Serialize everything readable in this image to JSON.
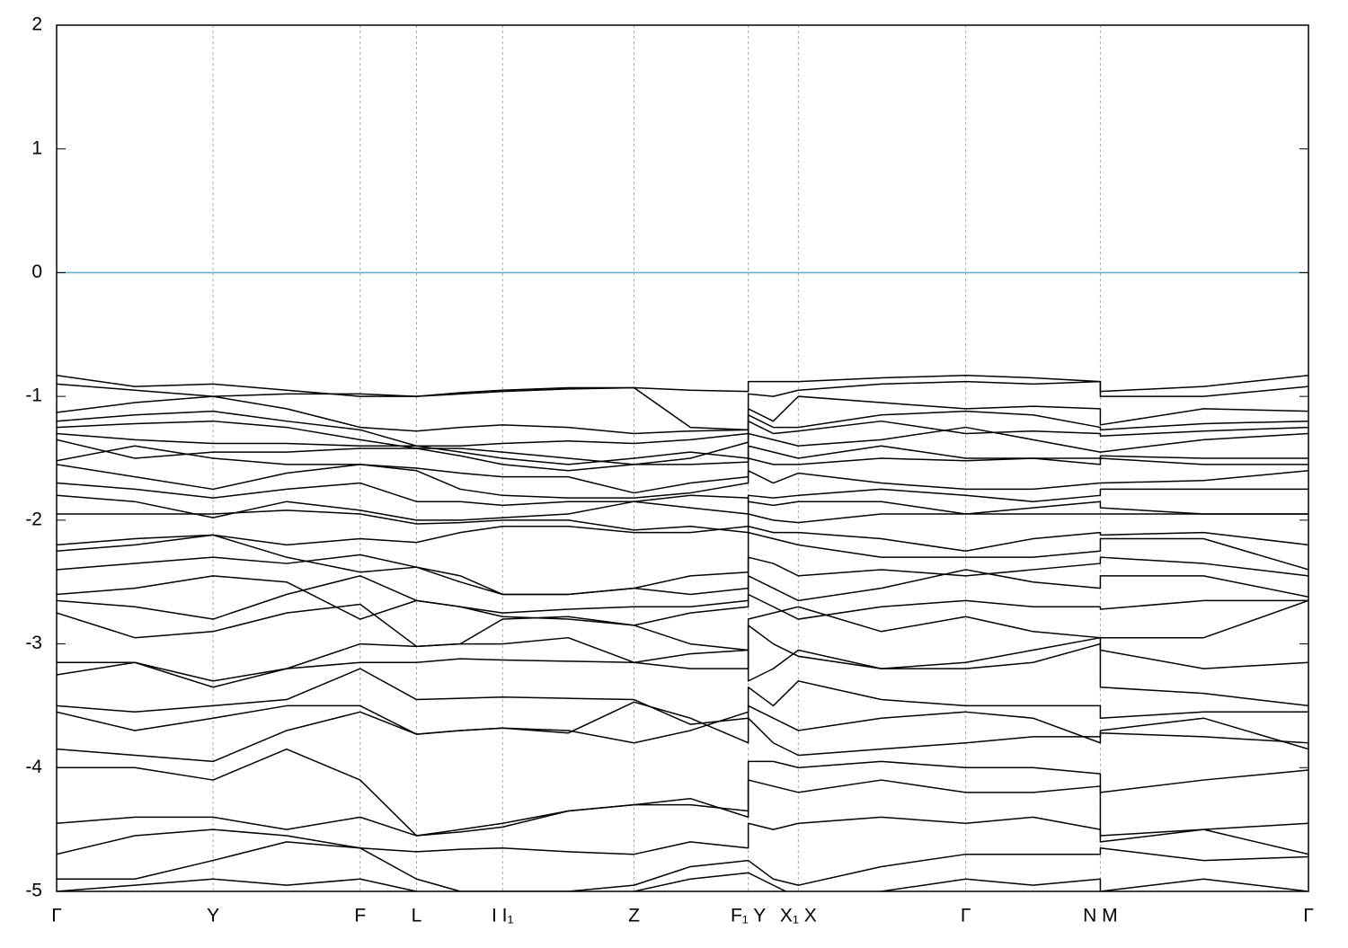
{
  "chart_data": {
    "type": "line",
    "color": "#000000",
    "xlim": [
      0,
      8.0
    ],
    "ylim": [
      -5,
      2
    ],
    "yticks": [
      -5,
      -4,
      -3,
      -2,
      -1,
      0,
      1,
      2
    ],
    "xticks": [
      {
        "value": 0,
        "label": "Γ"
      },
      {
        "value": 1.0,
        "label": "Y"
      },
      {
        "value": 1.94,
        "label": "F"
      },
      {
        "value": 2.3,
        "label": "L"
      },
      {
        "value": 2.85,
        "label": "I I₁"
      },
      {
        "value": 3.69,
        "label": "Z"
      },
      {
        "value": 4.42,
        "label": "F₁ Y"
      },
      {
        "value": 4.74,
        "label": "X₁ X"
      },
      {
        "value": 5.81,
        "label": "Γ"
      },
      {
        "value": 6.67,
        "label": "N M"
      },
      {
        "value": 8.0,
        "label": "Γ"
      }
    ],
    "xgrid": true,
    "reference_line": {
      "value": 0,
      "color": "#5fb3c8"
    },
    "x": [
      0,
      0.5,
      1.0,
      1.47,
      1.94,
      2.3,
      2.58,
      2.85,
      3.27,
      3.69,
      4.05,
      4.42,
      4.42,
      4.58,
      4.74,
      5.27,
      5.81,
      6.24,
      6.67,
      6.67,
      7.33,
      8.0
    ],
    "series": [
      {
        "values": [
          -0.83,
          -0.92,
          -0.9,
          -0.95,
          -1.0,
          -1.0,
          -0.97,
          -0.95,
          -0.93,
          -0.93,
          -0.95,
          -0.96,
          -0.88,
          -0.88,
          -0.88,
          -0.85,
          -0.83,
          -0.85,
          -0.88,
          -0.96,
          -0.92,
          -0.83
        ]
      },
      {
        "values": [
          -0.9,
          -0.95,
          -1.0,
          -0.98,
          -0.98,
          -1.0,
          -0.98,
          -0.96,
          -0.94,
          -0.93,
          -1.25,
          -1.27,
          -0.98,
          -1.0,
          -0.95,
          -0.9,
          -0.88,
          -0.9,
          -0.88,
          -1.0,
          -1.0,
          -0.92
        ]
      },
      {
        "values": [
          -1.13,
          -1.05,
          -1.0,
          -1.1,
          -1.25,
          -1.28,
          -1.25,
          -1.23,
          -1.25,
          -1.3,
          -1.28,
          -1.27,
          -1.1,
          -1.2,
          -1.0,
          -1.05,
          -1.1,
          -1.08,
          -1.1,
          -1.23,
          -1.1,
          -1.12
        ]
      },
      {
        "values": [
          -1.2,
          -1.15,
          -1.12,
          -1.2,
          -1.27,
          -1.4,
          -1.4,
          -1.38,
          -1.36,
          -1.38,
          -1.35,
          -1.3,
          -1.15,
          -1.25,
          -1.25,
          -1.15,
          -1.12,
          -1.15,
          -1.25,
          -1.27,
          -1.22,
          -1.2
        ]
      },
      {
        "values": [
          -1.25,
          -1.22,
          -1.2,
          -1.25,
          -1.35,
          -1.42,
          -1.42,
          -1.45,
          -1.5,
          -1.55,
          -1.5,
          -1.37,
          -1.2,
          -1.3,
          -1.28,
          -1.2,
          -1.3,
          -1.28,
          -1.3,
          -1.32,
          -1.28,
          -1.25
        ]
      },
      {
        "values": [
          -1.3,
          -1.35,
          -1.38,
          -1.38,
          -1.4,
          -1.4,
          -1.45,
          -1.5,
          -1.55,
          -1.5,
          -1.45,
          -1.5,
          -1.3,
          -1.35,
          -1.4,
          -1.35,
          -1.25,
          -1.35,
          -1.45,
          -1.45,
          -1.35,
          -1.3
        ]
      },
      {
        "values": [
          -1.35,
          -1.5,
          -1.45,
          -1.45,
          -1.42,
          -1.42,
          -1.48,
          -1.55,
          -1.6,
          -1.55,
          -1.55,
          -1.53,
          -1.4,
          -1.45,
          -1.5,
          -1.4,
          -1.5,
          -1.5,
          -1.5,
          -1.48,
          -1.5,
          -1.5
        ]
      },
      {
        "values": [
          -1.52,
          -1.4,
          -1.5,
          -1.55,
          -1.55,
          -1.58,
          -1.62,
          -1.65,
          -1.65,
          -1.78,
          -1.7,
          -1.65,
          -1.5,
          -1.55,
          -1.55,
          -1.5,
          -1.52,
          -1.5,
          -1.55,
          -1.5,
          -1.55,
          -1.55
        ]
      },
      {
        "values": [
          -1.55,
          -1.65,
          -1.75,
          -1.62,
          -1.55,
          -1.6,
          -1.75,
          -1.8,
          -1.82,
          -1.82,
          -1.78,
          -1.7,
          -1.6,
          -1.7,
          -1.62,
          -1.7,
          -1.75,
          -1.75,
          -1.7,
          -1.7,
          -1.68,
          -1.6
        ]
      },
      {
        "values": [
          -1.7,
          -1.75,
          -1.82,
          -1.75,
          -1.7,
          -1.85,
          -1.85,
          -1.88,
          -1.85,
          -1.85,
          -1.9,
          -1.95,
          -1.8,
          -1.82,
          -1.8,
          -1.75,
          -1.8,
          -1.85,
          -1.8,
          -1.75,
          -1.75,
          -1.75
        ]
      },
      {
        "values": [
          -1.8,
          -1.85,
          -1.98,
          -1.85,
          -1.92,
          -2.0,
          -2.0,
          -1.98,
          -1.95,
          -1.85,
          -1.8,
          -1.82,
          -1.85,
          -1.88,
          -1.85,
          -1.85,
          -1.95,
          -1.9,
          -1.85,
          -1.9,
          -1.95,
          -1.95
        ]
      },
      {
        "values": [
          -1.95,
          -1.95,
          -1.95,
          -1.92,
          -1.95,
          -2.03,
          -2.02,
          -2.0,
          -2.0,
          -2.08,
          -2.05,
          -2.1,
          -1.95,
          -2.0,
          -2.02,
          -1.95,
          -1.95,
          -1.95,
          -1.95,
          -1.95,
          -1.95,
          -1.95
        ]
      },
      {
        "values": [
          -2.2,
          -2.15,
          -2.12,
          -2.2,
          -2.15,
          -2.18,
          -2.1,
          -2.05,
          -2.05,
          -2.1,
          -2.1,
          -2.05,
          -2.05,
          -2.1,
          -2.1,
          -2.15,
          -2.25,
          -2.15,
          -2.1,
          -2.12,
          -2.1,
          -2.2
        ]
      },
      {
        "values": [
          -2.25,
          -2.2,
          -2.12,
          -2.3,
          -2.42,
          -2.38,
          -2.45,
          -2.6,
          -2.6,
          -2.55,
          -2.45,
          -2.42,
          -2.1,
          -2.15,
          -2.2,
          -2.3,
          -2.3,
          -2.3,
          -2.25,
          -2.15,
          -2.15,
          -2.4
        ]
      },
      {
        "values": [
          -2.4,
          -2.35,
          -2.3,
          -2.35,
          -2.28,
          -2.38,
          -2.5,
          -2.6,
          -2.6,
          -2.55,
          -2.6,
          -2.55,
          -2.3,
          -2.35,
          -2.45,
          -2.4,
          -2.45,
          -2.4,
          -2.35,
          -2.3,
          -2.35,
          -2.45
        ]
      },
      {
        "values": [
          -2.6,
          -2.55,
          -2.45,
          -2.5,
          -2.8,
          -2.65,
          -2.7,
          -2.75,
          -2.72,
          -2.7,
          -2.7,
          -2.65,
          -2.45,
          -2.55,
          -2.65,
          -2.55,
          -2.4,
          -2.5,
          -2.55,
          -2.45,
          -2.45,
          -2.62
        ]
      },
      {
        "values": [
          -2.65,
          -2.7,
          -2.8,
          -2.6,
          -2.45,
          -2.65,
          -2.7,
          -2.78,
          -2.8,
          -2.85,
          -2.75,
          -2.7,
          -2.6,
          -2.7,
          -2.8,
          -2.7,
          -2.65,
          -2.7,
          -2.7,
          -2.72,
          -2.65,
          -2.65
        ]
      },
      {
        "values": [
          -2.75,
          -2.95,
          -2.9,
          -2.75,
          -2.68,
          -3.02,
          -3.0,
          -2.8,
          -2.78,
          -2.85,
          -3.0,
          -3.05,
          -2.8,
          -2.75,
          -2.7,
          -2.9,
          -2.78,
          -2.9,
          -2.95,
          -2.95,
          -2.95,
          -2.65
        ]
      },
      {
        "values": [
          -3.15,
          -3.15,
          -3.3,
          -3.2,
          -3.15,
          -3.15,
          -3.12,
          -3.13,
          -3.14,
          -3.15,
          -3.2,
          -3.2,
          -2.85,
          -3.0,
          -3.1,
          -3.2,
          -3.15,
          -3.05,
          -2.95,
          -3.05,
          -3.2,
          -3.15
        ]
      },
      {
        "values": [
          -3.25,
          -3.15,
          -3.35,
          -3.2,
          -3.0,
          -3.02,
          -3.0,
          -3.0,
          -2.95,
          -3.15,
          -3.08,
          -3.05,
          -3.3,
          -3.2,
          -3.05,
          -3.2,
          -3.2,
          -3.15,
          -3.0,
          -3.35,
          -3.4,
          -3.5
        ]
      },
      {
        "values": [
          -3.5,
          -3.55,
          -3.5,
          -3.45,
          -3.2,
          -3.45,
          -3.44,
          -3.43,
          -3.44,
          -3.45,
          -3.65,
          -3.6,
          -3.35,
          -3.5,
          -3.3,
          -3.45,
          -3.5,
          -3.5,
          -3.5,
          -3.6,
          -3.55,
          -3.55
        ]
      },
      {
        "values": [
          -3.55,
          -3.7,
          -3.6,
          -3.5,
          -3.5,
          -3.73,
          -3.7,
          -3.68,
          -3.7,
          -3.8,
          -3.7,
          -3.55,
          -3.5,
          -3.6,
          -3.7,
          -3.6,
          -3.55,
          -3.6,
          -3.8,
          -3.7,
          -3.6,
          -3.85
        ]
      },
      {
        "values": [
          -3.85,
          -3.9,
          -3.95,
          -3.7,
          -3.55,
          -3.73,
          -3.7,
          -3.68,
          -3.72,
          -3.47,
          -3.6,
          -3.8,
          -3.6,
          -3.8,
          -3.9,
          -3.85,
          -3.8,
          -3.75,
          -3.75,
          -3.72,
          -3.75,
          -3.8
        ]
      },
      {
        "values": [
          -4.0,
          -4.0,
          -4.1,
          -3.85,
          -4.1,
          -4.55,
          -4.5,
          -4.45,
          -4.35,
          -4.3,
          -4.3,
          -4.35,
          -3.95,
          -3.95,
          -4.0,
          -3.95,
          -4.0,
          -4.0,
          -4.05,
          -4.2,
          -4.1,
          -4.02
        ]
      },
      {
        "values": [
          -4.45,
          -4.4,
          -4.4,
          -4.5,
          -4.4,
          -4.55,
          -4.52,
          -4.48,
          -4.35,
          -4.3,
          -4.25,
          -4.4,
          -4.1,
          -4.15,
          -4.2,
          -4.1,
          -4.2,
          -4.2,
          -4.15,
          -4.55,
          -4.5,
          -4.45
        ]
      },
      {
        "values": [
          -4.7,
          -4.55,
          -4.5,
          -4.55,
          -4.65,
          -4.68,
          -4.66,
          -4.65,
          -4.68,
          -4.7,
          -4.6,
          -4.65,
          -4.45,
          -4.5,
          -4.45,
          -4.4,
          -4.45,
          -4.4,
          -4.5,
          -4.6,
          -4.5,
          -4.7
        ]
      },
      {
        "values": [
          -4.9,
          -4.9,
          -4.75,
          -4.6,
          -4.65,
          -4.9,
          -5.0,
          -5.0,
          -5.0,
          -4.95,
          -4.8,
          -4.75,
          -4.75,
          -4.9,
          -4.95,
          -4.8,
          -4.7,
          -4.7,
          -4.7,
          -4.65,
          -4.75,
          -4.72
        ]
      },
      {
        "values": [
          -5.0,
          -4.95,
          -4.9,
          -4.95,
          -4.9,
          -5.0,
          -5.05,
          -5.1,
          -5.1,
          -5.0,
          -4.9,
          -4.85,
          -4.85,
          -4.95,
          -5.05,
          -5.0,
          -4.9,
          -4.95,
          -4.9,
          -5.0,
          -4.9,
          -5.0
        ]
      }
    ]
  }
}
